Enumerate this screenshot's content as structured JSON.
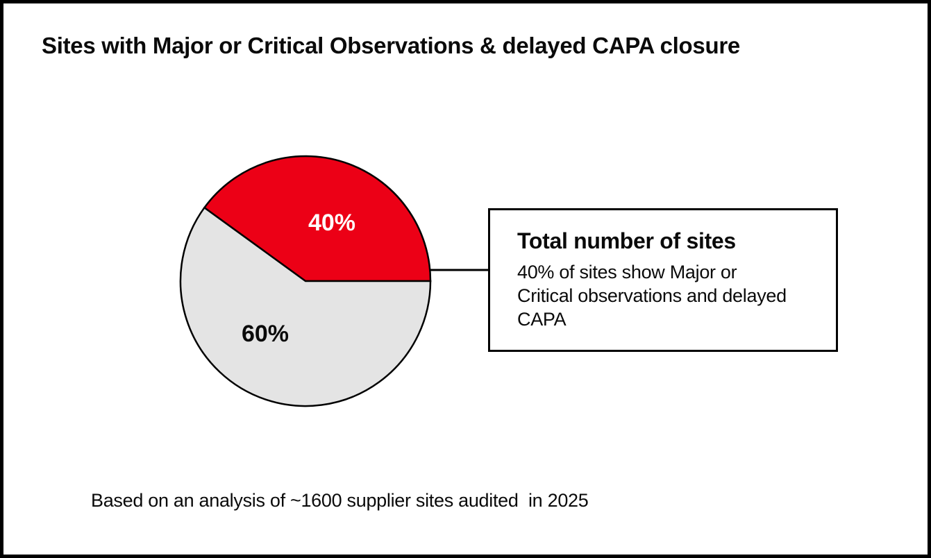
{
  "frame": {
    "background": "#ffffff",
    "border_color": "#000000"
  },
  "title": "Sites with Major or Critical Observations & delayed CAPA closure",
  "chart_data": {
    "type": "pie",
    "title": "Sites with Major or Critical Observations & delayed CAPA closure",
    "start_angle_deg": 0,
    "direction": "counterclockwise",
    "outline_color": "#000000",
    "slices": [
      {
        "name": "sites-with-major-critical-and-delayed-capa",
        "label": "40%",
        "value": 40,
        "color": "#ec0016",
        "label_color": "#ffffff"
      },
      {
        "name": "other-sites",
        "label": "60%",
        "value": 60,
        "color": "#e4e4e4",
        "label_color": "#0a0a0a"
      }
    ],
    "annotation": {
      "heading": "Total number of sites",
      "body": "40% of sites show Major or Critical observations and delayed CAPA"
    }
  },
  "callout": {
    "heading": "Total number of sites",
    "body_lines": [
      "40% of sites show Major or",
      "Critical observations and delayed",
      "CAPA"
    ]
  },
  "footnote": "Based on an analysis of ~1600 supplier sites audited  in 2025"
}
